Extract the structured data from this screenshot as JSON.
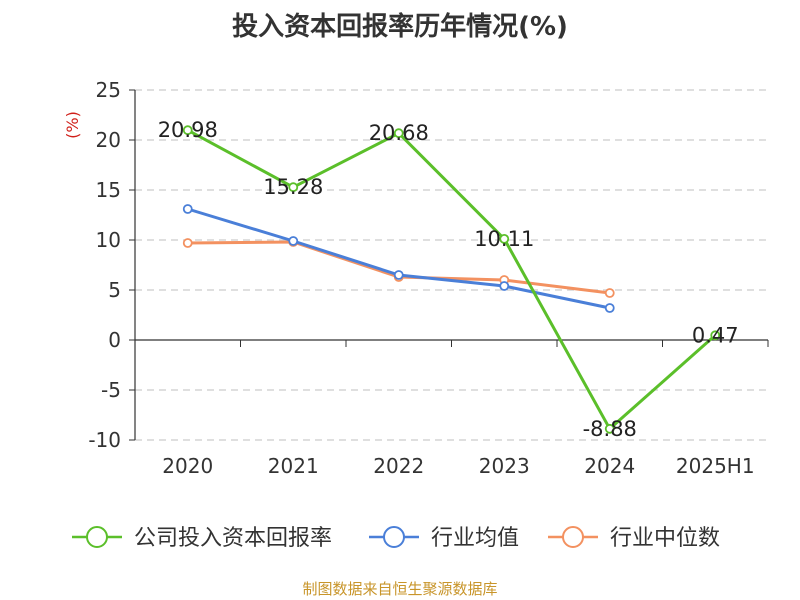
{
  "chart_data": {
    "type": "line",
    "title": "投入资本回报率历年情况(%)",
    "ylabel": "(%)",
    "categories": [
      "2020",
      "2021",
      "2022",
      "2023",
      "2024",
      "2025H1"
    ],
    "ylim": [
      -10,
      25
    ],
    "yticks": [
      25,
      20,
      15,
      10,
      5,
      0,
      -5,
      -10
    ],
    "grid": true,
    "legend_position": "bottom",
    "series": [
      {
        "name": "公司投入资本回报率",
        "color": "#5bbf2a",
        "values": [
          20.98,
          15.28,
          20.68,
          10.11,
          -8.88,
          0.47
        ],
        "labels": [
          "20.98",
          "15.28",
          "20.68",
          "10.11",
          "-8.88",
          "0.47"
        ]
      },
      {
        "name": "行业均值",
        "color": "#4a7fd8",
        "values": [
          13.1,
          9.9,
          6.5,
          5.4,
          3.2,
          null
        ]
      },
      {
        "name": "行业中位数",
        "color": "#f39160",
        "values": [
          9.7,
          9.8,
          6.3,
          6.0,
          4.7,
          null
        ]
      }
    ]
  },
  "source_note": "制图数据来自恒生聚源数据库"
}
